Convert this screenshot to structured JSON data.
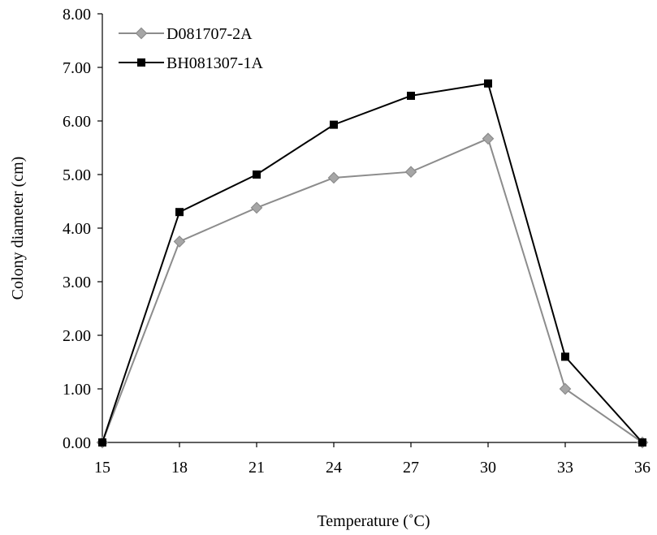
{
  "chart_data": {
    "type": "line",
    "xlabel": "Temperature (˚C)",
    "ylabel": "Colony diameter (cm)",
    "x": [
      15,
      18,
      21,
      24,
      27,
      30,
      33,
      36
    ],
    "x_ticks": [
      "15",
      "18",
      "21",
      "24",
      "27",
      "30",
      "33",
      "36"
    ],
    "xlim": [
      15,
      36
    ],
    "ylim": [
      0,
      8
    ],
    "y_ticks": [
      "0.00",
      "1.00",
      "2.00",
      "3.00",
      "4.00",
      "5.00",
      "6.00",
      "7.00",
      "8.00"
    ],
    "grid": false,
    "legend": "top-left",
    "series": [
      {
        "name": "D081707-2A",
        "marker": "diamond",
        "color": "#8c8c8c",
        "marker_fill": "#a6a6a6",
        "values": [
          0,
          3.75,
          4.38,
          4.94,
          5.05,
          5.67,
          1.0,
          0
        ]
      },
      {
        "name": "BH081307-1A",
        "marker": "square",
        "color": "#000000",
        "marker_fill": "#000000",
        "values": [
          0,
          4.3,
          5.0,
          5.93,
          6.47,
          6.7,
          1.6,
          0
        ]
      }
    ]
  }
}
